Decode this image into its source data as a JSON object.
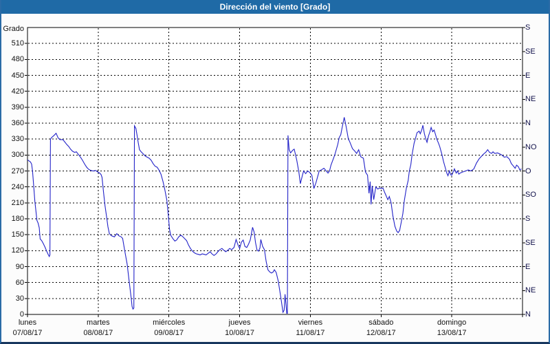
{
  "titlebar": {
    "title": "Dirección del viento [Grado]"
  },
  "colors": {
    "titlebar_bg": "#1f6aa6",
    "titlebar_text": "#ffffff",
    "border_side": "#2a6ba6",
    "border_bottom": "#17375e",
    "plot_bg": "#ffffff",
    "grid": "#000000",
    "line": "#2121c8"
  },
  "chart_data": {
    "type": "line",
    "title": "Dirección del viento [Grado]",
    "y_left_label": "Grado",
    "y_left_ticks": [
      0,
      30,
      60,
      90,
      120,
      150,
      180,
      210,
      240,
      270,
      300,
      330,
      360,
      390,
      420,
      450,
      480,
      510
    ],
    "y_left_range": [
      0,
      540
    ],
    "grid": "dashed",
    "legend": "none",
    "line_color": "#2121c8",
    "y_right_labels": [
      {
        "v": 540,
        "t": "S"
      },
      {
        "v": 495,
        "t": "SE"
      },
      {
        "v": 450,
        "t": "E"
      },
      {
        "v": 405,
        "t": "NE"
      },
      {
        "v": 360,
        "t": "N"
      },
      {
        "v": 315,
        "t": "NO"
      },
      {
        "v": 270,
        "t": "O"
      },
      {
        "v": 225,
        "t": "SO"
      },
      {
        "v": 180,
        "t": "S"
      },
      {
        "v": 135,
        "t": "SE"
      },
      {
        "v": 90,
        "t": "E"
      },
      {
        "v": 45,
        "t": "NE"
      },
      {
        "v": 0,
        "t": "N"
      }
    ],
    "x_days": [
      {
        "day": "lunes",
        "date": "07/08/17"
      },
      {
        "day": "martes",
        "date": "08/08/17"
      },
      {
        "day": "miércoles",
        "date": "09/08/17"
      },
      {
        "day": "jueves",
        "date": "10/08/17"
      },
      {
        "day": "viernes",
        "date": "11/08/17"
      },
      {
        "day": "sábado",
        "date": "12/08/17"
      },
      {
        "day": "domingo",
        "date": "13/08/17"
      }
    ],
    "x_unit": "hours_since_monday_00",
    "x_range_hours": [
      0,
      168
    ],
    "series": [
      {
        "name": "Dirección del viento",
        "unit": "Grado",
        "points": [
          [
            0,
            291
          ],
          [
            0.5,
            289
          ],
          [
            1,
            287
          ],
          [
            1.4,
            283
          ],
          [
            1.7,
            270
          ],
          [
            2.1,
            242
          ],
          [
            2.5,
            213
          ],
          [
            2.9,
            193
          ],
          [
            3.2,
            177
          ],
          [
            3.6,
            172
          ],
          [
            4,
            163
          ],
          [
            4.3,
            142
          ],
          [
            4.8,
            139
          ],
          [
            5.3,
            134
          ],
          [
            5.9,
            127
          ],
          [
            6.5,
            119
          ],
          [
            7.1,
            112
          ],
          [
            7.4,
            109
          ],
          [
            7.6,
            112
          ],
          [
            7.8,
            330
          ],
          [
            8.2,
            333
          ],
          [
            9,
            337
          ],
          [
            9.7,
            341
          ],
          [
            10.4,
            332
          ],
          [
            11,
            329
          ],
          [
            12,
            329
          ],
          [
            12.6,
            325
          ],
          [
            13.3,
            320
          ],
          [
            14,
            316
          ],
          [
            14.6,
            311
          ],
          [
            15.3,
            307
          ],
          [
            16,
            305
          ],
          [
            16.6,
            306
          ],
          [
            17.3,
            301
          ],
          [
            18,
            296
          ],
          [
            18.7,
            290
          ],
          [
            19.4,
            283
          ],
          [
            20.1,
            277
          ],
          [
            20.8,
            273
          ],
          [
            21.5,
            271
          ],
          [
            22.3,
            270
          ],
          [
            23.1,
            271
          ],
          [
            23.6,
            269
          ],
          [
            24.5,
            266
          ],
          [
            25,
            263
          ],
          [
            25.3,
            258
          ],
          [
            25.8,
            230
          ],
          [
            26.3,
            205
          ],
          [
            26.8,
            185
          ],
          [
            27.3,
            165
          ],
          [
            27.8,
            152
          ],
          [
            28.5,
            148
          ],
          [
            29.5,
            146
          ],
          [
            30.3,
            152
          ],
          [
            31,
            148
          ],
          [
            31.8,
            146
          ],
          [
            32.3,
            143
          ],
          [
            33,
            120
          ],
          [
            33.8,
            95
          ],
          [
            34.5,
            62
          ],
          [
            35.2,
            30
          ],
          [
            35.5,
            15
          ],
          [
            35.8,
            10
          ],
          [
            36.1,
            12
          ],
          [
            36.3,
            355
          ],
          [
            36.8,
            350
          ],
          [
            37.2,
            337
          ],
          [
            37.6,
            323
          ],
          [
            38,
            310
          ],
          [
            38.6,
            306
          ],
          [
            39.3,
            302
          ],
          [
            40,
            298
          ],
          [
            40.6,
            296
          ],
          [
            41.3,
            294
          ],
          [
            42,
            290
          ],
          [
            42.6,
            284
          ],
          [
            43.3,
            279
          ],
          [
            44,
            277
          ],
          [
            44.6,
            272
          ],
          [
            45.3,
            264
          ],
          [
            46,
            250
          ],
          [
            46.6,
            235
          ],
          [
            47.3,
            215
          ],
          [
            47.8,
            185
          ],
          [
            48.2,
            160
          ],
          [
            48.6,
            149
          ],
          [
            49.3,
            143
          ],
          [
            50,
            138
          ],
          [
            50.6,
            140
          ],
          [
            51.3,
            146
          ],
          [
            52,
            149
          ],
          [
            52.6,
            147
          ],
          [
            53.3,
            143
          ],
          [
            54,
            139
          ],
          [
            54.6,
            131
          ],
          [
            55.3,
            124
          ],
          [
            56,
            119
          ],
          [
            56.6,
            116
          ],
          [
            57.3,
            114
          ],
          [
            58,
            113
          ],
          [
            58.6,
            112
          ],
          [
            59.3,
            114
          ],
          [
            60,
            113
          ],
          [
            60.6,
            112
          ],
          [
            61.3,
            115
          ],
          [
            62,
            118
          ],
          [
            62.6,
            114
          ],
          [
            63.3,
            111
          ],
          [
            64,
            114
          ],
          [
            64.6,
            118
          ],
          [
            65.3,
            122
          ],
          [
            66,
            124
          ],
          [
            66.6,
            121
          ],
          [
            67.3,
            118
          ],
          [
            68,
            121
          ],
          [
            68.6,
            124
          ],
          [
            69.3,
            122
          ],
          [
            70.1,
            126
          ],
          [
            70.8,
            141
          ],
          [
            71.5,
            130
          ],
          [
            72,
            124
          ],
          [
            72.6,
            136
          ],
          [
            73.2,
            140
          ],
          [
            73.8,
            128
          ],
          [
            74.4,
            126
          ],
          [
            75,
            132
          ],
          [
            75.6,
            140
          ],
          [
            76,
            152
          ],
          [
            76.4,
            164
          ],
          [
            76.9,
            155
          ],
          [
            77.4,
            135
          ],
          [
            77.9,
            121
          ],
          [
            78.4,
            119
          ],
          [
            78.9,
            125
          ],
          [
            79.2,
            141
          ],
          [
            79.8,
            128
          ],
          [
            80.4,
            122
          ],
          [
            81,
            100
          ],
          [
            81.6,
            84
          ],
          [
            82.2,
            80
          ],
          [
            82.8,
            78
          ],
          [
            83.4,
            80
          ],
          [
            83.8,
            84
          ],
          [
            84.4,
            79
          ],
          [
            85.1,
            63
          ],
          [
            86,
            31
          ],
          [
            86.7,
            4
          ],
          [
            87.1,
            8
          ],
          [
            87.4,
            38
          ],
          [
            87.7,
            20
          ],
          [
            88,
            2
          ],
          [
            88.2,
            2
          ],
          [
            88.4,
            337
          ],
          [
            88.8,
            310
          ],
          [
            89.3,
            304
          ],
          [
            90,
            309
          ],
          [
            90.5,
            311
          ],
          [
            90.9,
            302
          ],
          [
            91.4,
            290
          ],
          [
            92.1,
            268
          ],
          [
            92.6,
            246
          ],
          [
            93.3,
            262
          ],
          [
            93.7,
            270
          ],
          [
            94.4,
            265
          ],
          [
            95.1,
            270
          ],
          [
            95.6,
            268
          ],
          [
            96,
            266
          ],
          [
            96.5,
            262
          ],
          [
            97.2,
            237
          ],
          [
            97.9,
            248
          ],
          [
            98.6,
            262
          ],
          [
            99,
            270
          ],
          [
            100,
            273
          ],
          [
            100.6,
            275
          ],
          [
            101.1,
            272
          ],
          [
            102,
            266
          ],
          [
            102.5,
            270
          ],
          [
            103,
            281
          ],
          [
            104.2,
            299
          ],
          [
            104.8,
            310
          ],
          [
            105.3,
            320
          ],
          [
            105.8,
            333
          ],
          [
            106.3,
            338
          ],
          [
            106.8,
            352
          ],
          [
            107.5,
            371
          ],
          [
            108.2,
            352
          ],
          [
            108.9,
            330
          ],
          [
            109.3,
            326
          ],
          [
            110.3,
            312
          ],
          [
            111,
            308
          ],
          [
            111.7,
            303
          ],
          [
            112.4,
            310
          ],
          [
            113.1,
            297
          ],
          [
            114,
            294
          ],
          [
            114.7,
            268
          ],
          [
            115.4,
            262
          ],
          [
            115.9,
            228
          ],
          [
            116.3,
            250
          ],
          [
            116.6,
            207
          ],
          [
            117,
            242
          ],
          [
            117.5,
            216
          ],
          [
            118.2,
            240
          ],
          [
            118.9,
            236
          ],
          [
            119.5,
            238
          ],
          [
            120,
            237
          ],
          [
            120.6,
            238
          ],
          [
            121.2,
            230
          ],
          [
            122.3,
            216
          ],
          [
            122.8,
            222
          ],
          [
            123.4,
            210
          ],
          [
            124,
            186
          ],
          [
            124.7,
            166
          ],
          [
            125.3,
            157
          ],
          [
            125.8,
            154
          ],
          [
            126.3,
            158
          ],
          [
            126.8,
            172
          ],
          [
            127.4,
            190
          ],
          [
            127.9,
            214
          ],
          [
            128.6,
            238
          ],
          [
            129.2,
            252
          ],
          [
            129.6,
            270
          ],
          [
            130.1,
            282
          ],
          [
            130.5,
            300
          ],
          [
            131.2,
            322
          ],
          [
            131.8,
            334
          ],
          [
            132.2,
            342
          ],
          [
            132.9,
            345
          ],
          [
            133.3,
            340
          ],
          [
            133.8,
            347
          ],
          [
            134.2,
            356
          ],
          [
            134.7,
            340
          ],
          [
            135.2,
            330
          ],
          [
            135.6,
            324
          ],
          [
            136.1,
            336
          ],
          [
            136.6,
            344
          ],
          [
            137,
            352
          ],
          [
            137.5,
            344
          ],
          [
            138,
            347
          ],
          [
            138.5,
            338
          ],
          [
            138.9,
            330
          ],
          [
            139.5,
            322
          ],
          [
            139.9,
            316
          ],
          [
            140.6,
            302
          ],
          [
            141.2,
            288
          ],
          [
            141.8,
            276
          ],
          [
            142.3,
            266
          ],
          [
            142.7,
            261
          ],
          [
            143.2,
            270
          ],
          [
            143.6,
            263
          ],
          [
            144,
            262
          ],
          [
            144.9,
            274
          ],
          [
            145.5,
            266
          ],
          [
            145.9,
            270
          ],
          [
            146.4,
            264
          ],
          [
            146.8,
            266
          ],
          [
            147.7,
            268
          ],
          [
            148.7,
            270
          ],
          [
            149.6,
            272
          ],
          [
            150.5,
            270
          ],
          [
            151.5,
            274
          ],
          [
            152.4,
            285
          ],
          [
            153.3,
            293
          ],
          [
            154.3,
            299
          ],
          [
            155,
            303
          ],
          [
            155.5,
            305
          ],
          [
            156.2,
            310
          ],
          [
            156.8,
            305
          ],
          [
            157.5,
            303
          ],
          [
            158,
            306
          ],
          [
            158.6,
            303
          ],
          [
            159.5,
            304
          ],
          [
            160.3,
            302
          ],
          [
            161,
            300
          ],
          [
            161.8,
            296
          ],
          [
            162.7,
            297
          ],
          [
            163.6,
            292
          ],
          [
            164.2,
            284
          ],
          [
            164.8,
            280
          ],
          [
            165.5,
            275
          ],
          [
            166,
            281
          ],
          [
            166.6,
            278
          ],
          [
            167.1,
            272
          ],
          [
            167.6,
            274
          ]
        ]
      }
    ]
  }
}
